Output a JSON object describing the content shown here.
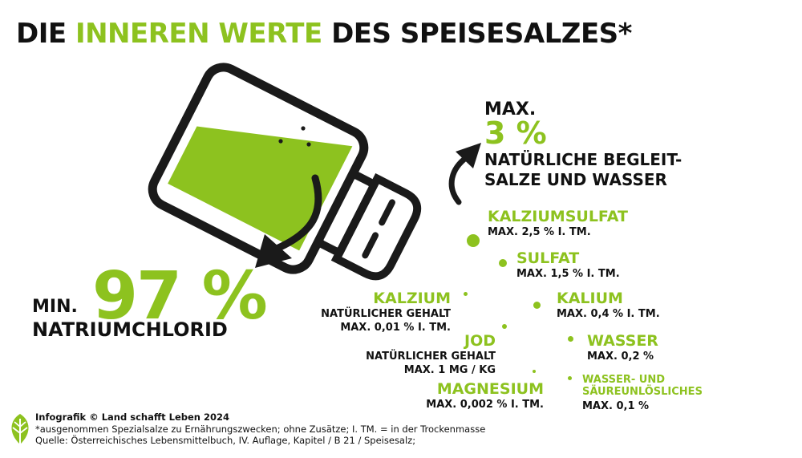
{
  "title": {
    "part1": "DIE ",
    "highlight": "INNEREN WERTE",
    "part2": " DES SPEISESALZES*"
  },
  "main": {
    "min_label": "MIN.",
    "value": "97 %",
    "name": "NATRIUMCHLORID"
  },
  "secondary": {
    "max_label": "MAX.",
    "value": "3 %",
    "line1": "NATÜRLICHE BEGLEIT-",
    "line2": "SALZE UND WASSER"
  },
  "components": [
    {
      "name": "KALZIUMSULFAT",
      "detail": "MAX. 2,5 % I. TM."
    },
    {
      "name": "SULFAT",
      "detail": "MAX. 1,5 % I. TM."
    },
    {
      "name": "KALZIUM",
      "detail1": "NATÜRLICHER GEHALT",
      "detail2": "MAX. 0,01 % I. TM."
    },
    {
      "name": "KALIUM",
      "detail": "MAX. 0,4 % I. TM."
    },
    {
      "name": "JOD",
      "detail1": "NATÜRLICHER GEHALT",
      "detail2": "MAX. 1 MG / KG"
    },
    {
      "name": "WASSER",
      "detail": "MAX. 0,2 %"
    },
    {
      "name": "MAGNESIUM",
      "detail": "MAX. 0,002 % I. TM."
    },
    {
      "name1": "WASSER- UND",
      "name2": "SÄUREUNLÖSLICHES",
      "detail": "MAX. 0,1 %"
    }
  ],
  "footer": {
    "credit": "Infografik © Land schafft Leben 2024",
    "note": "*ausgenommen Spezialsalze zu Ernährungszwecken; ohne Zusätze; I. TM. = in der Trockenmasse",
    "source": "Quelle: Österreichisches Lebensmittelbuch, IV. Auflage, Kapitel / B 21 / Speisesalz;"
  },
  "colors": {
    "accent": "#8dc21f",
    "text": "#111111",
    "background": "#ffffff"
  },
  "icons": [
    "salt-shaker-icon",
    "arrow-down-icon",
    "arrow-up-icon",
    "leaf-logo-icon"
  ]
}
